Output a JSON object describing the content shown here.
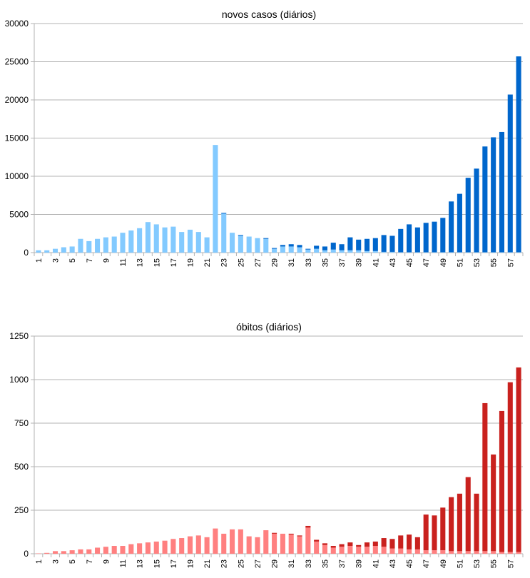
{
  "chart_data": [
    {
      "type": "bar",
      "stacked": true,
      "title": "novos casos (diários)",
      "xlabel": "",
      "ylabel": "",
      "ylim": [
        0,
        30000
      ],
      "yticks": [
        "0",
        "5000",
        "10000",
        "15000",
        "20000",
        "25000",
        "30000"
      ],
      "ytick_values": [
        0,
        5000,
        10000,
        15000,
        20000,
        25000,
        30000
      ],
      "grid": true,
      "legend": "none",
      "categories": [
        1,
        2,
        3,
        4,
        5,
        6,
        7,
        8,
        9,
        10,
        11,
        12,
        13,
        14,
        15,
        16,
        17,
        18,
        19,
        20,
        21,
        22,
        23,
        24,
        25,
        26,
        27,
        28,
        29,
        30,
        31,
        32,
        33,
        34,
        35,
        36,
        37,
        38,
        39,
        40,
        41,
        42,
        43,
        44,
        45,
        46,
        47,
        48,
        49,
        50,
        51,
        52,
        53,
        54,
        55,
        56,
        57,
        58
      ],
      "xtick_labels": [
        "1",
        "3",
        "5",
        "7",
        "9",
        "11",
        "13",
        "15",
        "17",
        "19",
        "21",
        "23",
        "25",
        "27",
        "29",
        "31",
        "33",
        "35",
        "37",
        "39",
        "41",
        "43",
        "45",
        "47",
        "49",
        "51",
        "53",
        "55",
        "57"
      ],
      "series": [
        {
          "color": "#83caff",
          "values": [
            300,
            300,
            500,
            700,
            800,
            1800,
            1500,
            1800,
            2000,
            2100,
            2600,
            2900,
            3200,
            4000,
            3700,
            3300,
            3400,
            2700,
            3000,
            2700,
            2000,
            14100,
            5100,
            2600,
            2200,
            2100,
            1900,
            1800,
            500,
            800,
            800,
            700,
            400,
            500,
            300,
            400,
            300,
            300,
            300,
            200,
            200,
            100,
            100,
            50,
            50,
            50,
            50,
            50,
            50,
            50,
            50,
            50,
            50,
            50,
            50,
            50,
            50,
            50
          ]
        },
        {
          "color": "#0066cc",
          "values": [
            0,
            0,
            0,
            0,
            0,
            0,
            0,
            0,
            0,
            0,
            0,
            0,
            0,
            0,
            0,
            0,
            0,
            0,
            0,
            0,
            0,
            0,
            100,
            0,
            100,
            0,
            0,
            100,
            100,
            200,
            300,
            300,
            100,
            400,
            500,
            900,
            800,
            1700,
            1400,
            1600,
            1700,
            2200,
            2100,
            3050,
            3650,
            3250,
            3850,
            4000,
            4500,
            6650,
            7650,
            9750,
            10950,
            13850,
            15050,
            15750,
            20650,
            25650
          ]
        }
      ]
    },
    {
      "type": "bar",
      "stacked": true,
      "title": "óbitos (diários)",
      "xlabel": "",
      "ylabel": "",
      "ylim": [
        0,
        1250
      ],
      "yticks": [
        "0",
        "250",
        "500",
        "750",
        "1000",
        "1250"
      ],
      "ytick_values": [
        0,
        250,
        500,
        750,
        1000,
        1250
      ],
      "grid": true,
      "legend": "none",
      "categories": [
        1,
        2,
        3,
        4,
        5,
        6,
        7,
        8,
        9,
        10,
        11,
        12,
        13,
        14,
        15,
        16,
        17,
        18,
        19,
        20,
        21,
        22,
        23,
        24,
        25,
        26,
        27,
        28,
        29,
        30,
        31,
        32,
        33,
        34,
        35,
        36,
        37,
        38,
        39,
        40,
        41,
        42,
        43,
        44,
        45,
        46,
        47,
        48,
        49,
        50,
        51,
        52,
        53,
        54,
        55,
        56,
        57,
        58
      ],
      "xtick_labels": [
        "1",
        "3",
        "5",
        "7",
        "9",
        "11",
        "13",
        "15",
        "17",
        "19",
        "21",
        "23",
        "25",
        "27",
        "29",
        "31",
        "33",
        "35",
        "37",
        "39",
        "41",
        "43",
        "45",
        "47",
        "49",
        "51",
        "53",
        "55",
        "57"
      ],
      "series": [
        {
          "color": "#ff8080",
          "values": [
            2,
            5,
            15,
            15,
            20,
            25,
            25,
            35,
            40,
            45,
            45,
            55,
            60,
            65,
            70,
            75,
            85,
            90,
            100,
            105,
            95,
            145,
            115,
            140,
            140,
            100,
            95,
            135,
            115,
            115,
            110,
            100,
            150,
            70,
            50,
            35,
            40,
            45,
            40,
            40,
            45,
            40,
            30,
            30,
            25,
            25,
            20,
            20,
            20,
            15,
            15,
            15,
            15,
            15,
            15,
            10,
            10,
            10
          ]
        },
        {
          "color": "#c9211e",
          "values": [
            0,
            0,
            0,
            0,
            0,
            0,
            0,
            0,
            0,
            0,
            0,
            0,
            0,
            0,
            0,
            0,
            0,
            0,
            0,
            0,
            0,
            0,
            0,
            0,
            0,
            0,
            0,
            0,
            5,
            0,
            5,
            5,
            10,
            10,
            10,
            10,
            15,
            20,
            10,
            25,
            25,
            50,
            55,
            75,
            85,
            70,
            205,
            200,
            245,
            310,
            330,
            425,
            330,
            850,
            555,
            810,
            975,
            1060
          ]
        }
      ]
    }
  ]
}
